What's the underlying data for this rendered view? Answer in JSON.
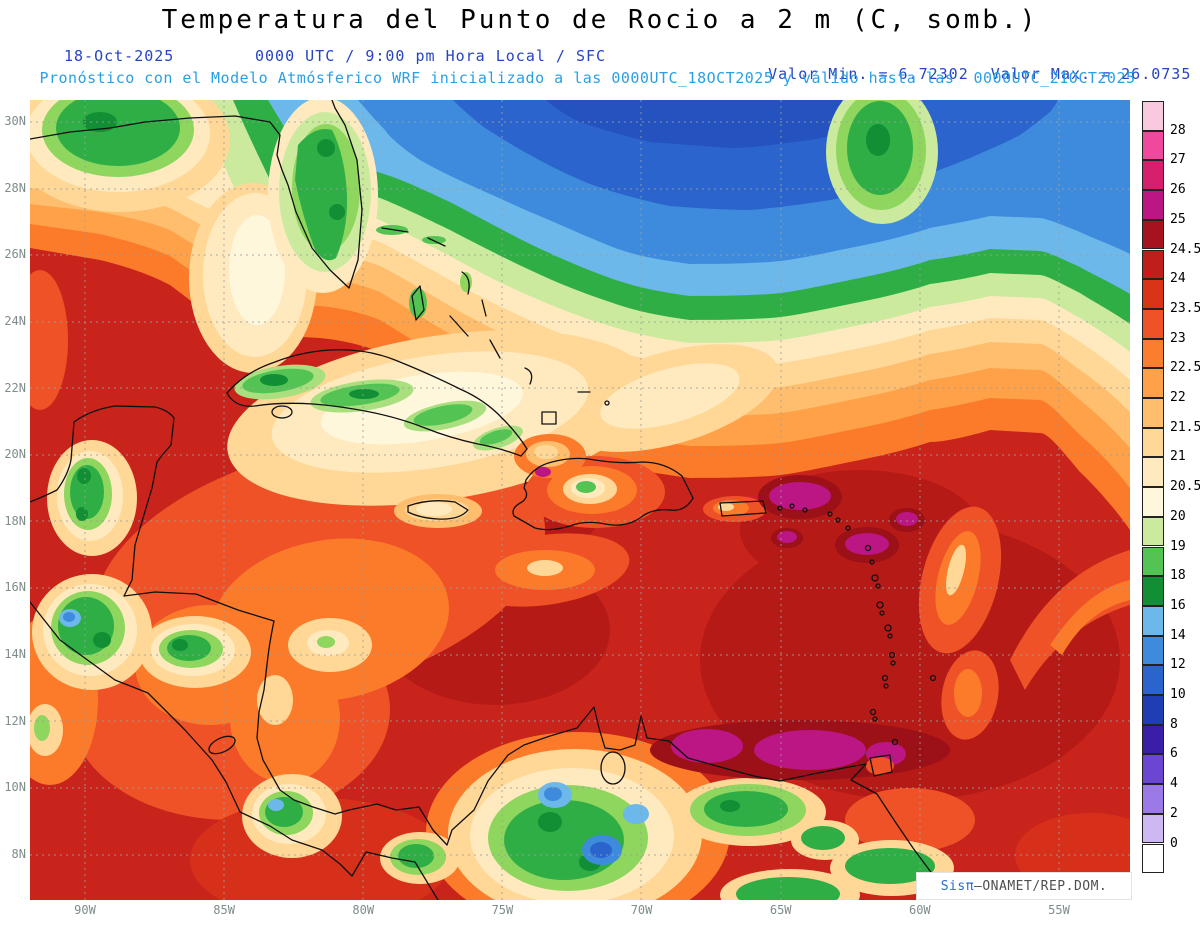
{
  "header": {
    "title": "Temperatura del Punto de Rocio a 2 m (C, somb.)",
    "date": "18-Oct-2025",
    "time_info": "0000 UTC / 9:00 pm Hora Local / SFC",
    "min_label": "Valor Min. = 6.72302",
    "max_label": "Valor Max. = 26.0735",
    "model_line": "Pronóstico con el Modelo Atmósferico WRF inicializado a las 0000UTC_18OCT2025 y válido hasta las  0000UTC_21OCT2025"
  },
  "map": {
    "lat_labels": [
      "30N",
      "28N",
      "26N",
      "24N",
      "22N",
      "20N",
      "18N",
      "16N",
      "14N",
      "12N",
      "10N",
      "8N"
    ],
    "lon_labels": [
      "90W",
      "85W",
      "80W",
      "75W",
      "70W",
      "65W",
      "60W",
      "55W"
    ]
  },
  "colorbar": {
    "tick_labels": [
      "28",
      "27",
      "26",
      "25",
      "24.5",
      "24",
      "23.5",
      "23",
      "22.5",
      "22",
      "21.5",
      "21",
      "20.5",
      "20",
      "19",
      "18",
      "16",
      "14",
      "12",
      "10",
      "8",
      "6",
      "4",
      "2",
      "0"
    ],
    "colors": [
      "#F9C9DF",
      "#F0489C",
      "#D6206E",
      "#BC1584",
      "#A6121E",
      "#C01E1A",
      "#D93418",
      "#EF5226",
      "#FA7E2E",
      "#FFA148",
      "#FFBE6E",
      "#FFD897",
      "#FFEAC0",
      "#FFF7DC",
      "#CBEA9E",
      "#53C353",
      "#128E34",
      "#6CB8EA",
      "#3E8ADC",
      "#2A64CC",
      "#1F3EB4",
      "#3B1EA8",
      "#6A46D2",
      "#9B79E6",
      "#CDB8F4",
      "#FFFFFF"
    ]
  },
  "watermark": {
    "brand": "Sisπ",
    "separator": "– ",
    "org": "ONAMET/REP.DOM."
  },
  "chart_data": {
    "type": "heatmap",
    "title": "Temperatura del Punto de Rocio a 2 m (C, somb.)",
    "variable": "Dew point temperature at 2 m (C, shaded)",
    "model": "WRF",
    "init": "0000UTC_18OCT2025",
    "valid_until": "0000UTC_21OCT2025",
    "valid_time": "18-Oct-2025 0000 UTC / 9:00 pm Hora Local / SFC",
    "value_min": 6.72302,
    "value_max": 26.0735,
    "lat_ticks": [
      "30N",
      "28N",
      "26N",
      "24N",
      "22N",
      "20N",
      "18N",
      "16N",
      "14N",
      "12N",
      "10N",
      "8N"
    ],
    "lon_ticks": [
      "90W",
      "85W",
      "80W",
      "75W",
      "70W",
      "65W",
      "60W",
      "55W"
    ],
    "contour_levels": [
      0,
      2,
      4,
      6,
      8,
      10,
      12,
      14,
      16,
      18,
      19,
      20,
      20.5,
      21,
      21.5,
      22,
      22.5,
      23,
      23.5,
      24,
      24.5,
      25,
      26,
      27,
      28
    ],
    "legend_position": "right",
    "grid": "dashed"
  }
}
